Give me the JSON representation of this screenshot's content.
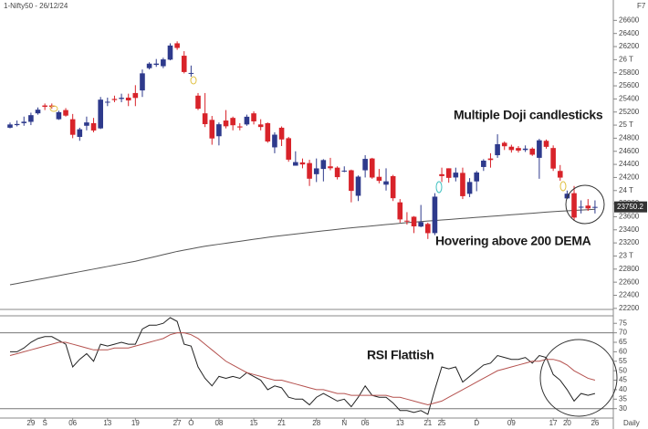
{
  "chart_data": [
    {
      "type": "candlestick",
      "title": "1-Nifty50 - 26/12/24",
      "shortcut": "F7",
      "x_label": "Daily",
      "annotations": [
        "Multiple Doji candlesticks",
        "Hovering above 200 DEMA"
      ],
      "categories": [
        null,
        null,
        null,
        "29",
        null,
        "S",
        null,
        null,
        null,
        "06",
        null,
        null,
        null,
        null,
        "13",
        null,
        null,
        null,
        "19",
        null,
        null,
        null,
        null,
        null,
        "27",
        null,
        "O",
        null,
        null,
        null,
        "08",
        null,
        null,
        null,
        null,
        "15",
        null,
        null,
        null,
        "21",
        null,
        null,
        null,
        null,
        "28",
        null,
        null,
        null,
        "N",
        null,
        null,
        "06",
        null,
        null,
        null,
        null,
        "13",
        null,
        null,
        null,
        "21",
        null,
        "25",
        null,
        null,
        null,
        null,
        "D",
        null,
        null,
        null,
        null,
        "09",
        null,
        null,
        null,
        null,
        null,
        "17",
        null,
        "20",
        null,
        null,
        null,
        "26"
      ],
      "up_color": "#2e3a8c",
      "down_color": "#d8232a",
      "ohlc": [
        [
          24960,
          25040,
          24950,
          25010
        ],
        [
          25000,
          25070,
          24980,
          25017
        ],
        [
          25030,
          25130,
          24990,
          25052
        ],
        [
          25050,
          25190,
          25000,
          25152
        ],
        [
          25180,
          25270,
          25160,
          25236
        ],
        [
          25300,
          25330,
          25230,
          25279
        ],
        [
          25300,
          25330,
          25250,
          25279
        ],
        [
          25090,
          25220,
          25080,
          25198
        ],
        [
          25230,
          25260,
          25130,
          25145
        ],
        [
          25090,
          25170,
          24800,
          24852
        ],
        [
          24820,
          24960,
          24760,
          24936
        ],
        [
          24990,
          25130,
          24920,
          25041
        ],
        [
          25030,
          25110,
          24890,
          24918
        ],
        [
          24950,
          25430,
          24940,
          25389
        ],
        [
          25350,
          25420,
          25290,
          25357
        ],
        [
          25400,
          25450,
          25350,
          25383
        ],
        [
          25400,
          25480,
          25350,
          25418
        ],
        [
          25420,
          25480,
          25290,
          25377
        ],
        [
          25490,
          25610,
          25290,
          25415
        ],
        [
          25530,
          25850,
          25430,
          25791
        ],
        [
          25870,
          25960,
          25850,
          25939
        ],
        [
          25920,
          26010,
          25890,
          25940
        ],
        [
          25900,
          26030,
          25870,
          26004
        ],
        [
          26000,
          26250,
          25990,
          26216
        ],
        [
          26250,
          26280,
          26150,
          26179
        ],
        [
          26060,
          26130,
          25790,
          25811
        ],
        [
          25790,
          25910,
          25740,
          25797
        ],
        [
          25450,
          25490,
          25230,
          25250
        ],
        [
          25180,
          25490,
          24970,
          25015
        ],
        [
          25080,
          25140,
          24700,
          24796
        ],
        [
          24830,
          25040,
          24690,
          25013
        ],
        [
          25070,
          25230,
          24950,
          24982
        ],
        [
          25110,
          25130,
          24920,
          24998
        ],
        [
          24980,
          25030,
          24920,
          24964
        ],
        [
          25010,
          25160,
          24990,
          25128
        ],
        [
          25180,
          25210,
          25010,
          25057
        ],
        [
          25010,
          25090,
          24920,
          24971
        ],
        [
          25030,
          25040,
          24730,
          24750
        ],
        [
          24660,
          24890,
          24570,
          24854
        ],
        [
          24960,
          24980,
          24680,
          24781
        ],
        [
          24800,
          24820,
          24440,
          24472
        ],
        [
          24380,
          24600,
          24380,
          24435
        ],
        [
          24430,
          24490,
          24340,
          24399
        ],
        [
          24420,
          24470,
          24070,
          24181
        ],
        [
          24250,
          24490,
          24130,
          24339
        ],
        [
          24330,
          24480,
          24140,
          24466
        ],
        [
          24370,
          24500,
          24310,
          24341
        ],
        [
          24350,
          24370,
          24170,
          24205
        ],
        [
          24300,
          24370,
          24280,
          24304
        ],
        [
          24310,
          24320,
          23820,
          23995
        ],
        [
          23920,
          24230,
          23840,
          24213
        ],
        [
          24310,
          24540,
          24200,
          24484
        ],
        [
          24490,
          24500,
          24180,
          24199
        ],
        [
          24210,
          24330,
          24110,
          24148
        ],
        [
          24090,
          24340,
          24000,
          24141
        ],
        [
          24220,
          24240,
          23840,
          23883
        ],
        [
          23820,
          23870,
          23510,
          23559
        ],
        [
          23540,
          23670,
          23480,
          23533
        ],
        [
          23600,
          23610,
          23350,
          23453
        ],
        [
          23450,
          23780,
          23440,
          23518
        ],
        [
          23490,
          23510,
          23260,
          23349
        ],
        [
          23350,
          23960,
          23320,
          23907
        ],
        [
          24250,
          24350,
          24130,
          24221
        ],
        [
          24340,
          24340,
          24120,
          24194
        ],
        [
          24200,
          24350,
          24140,
          24274
        ],
        [
          24270,
          24350,
          23870,
          23914
        ],
        [
          23950,
          24190,
          23900,
          24131
        ],
        [
          24140,
          24300,
          23990,
          24276
        ],
        [
          24360,
          24480,
          24300,
          24457
        ],
        [
          24490,
          24570,
          24350,
          24467
        ],
        [
          24540,
          24860,
          24500,
          24708
        ],
        [
          24730,
          24750,
          24620,
          24677
        ],
        [
          24670,
          24700,
          24580,
          24619
        ],
        [
          24650,
          24680,
          24580,
          24610
        ],
        [
          24620,
          24690,
          24590,
          24641
        ],
        [
          24640,
          24660,
          24530,
          24548
        ],
        [
          24500,
          24790,
          24180,
          24768
        ],
        [
          24760,
          24780,
          24640,
          24668
        ],
        [
          24650,
          24690,
          24300,
          24336
        ],
        [
          24300,
          24390,
          24150,
          24198
        ],
        [
          23880,
          24000,
          23870,
          23952
        ],
        [
          23960,
          24070,
          23540,
          23587
        ],
        [
          23740,
          23850,
          23650,
          23753
        ],
        [
          23770,
          23870,
          23690,
          23727
        ],
        [
          23750,
          23850,
          23650,
          23750.2
        ]
      ],
      "dema_color": "#555555",
      "dema": [
        22560,
        22580,
        22600,
        22620,
        22640,
        22660,
        22680,
        22700,
        22720,
        22740,
        22760,
        22780,
        22800,
        22820,
        22840,
        22860,
        22880,
        22900,
        22920,
        22945,
        22970,
        22995,
        23020,
        23045,
        23070,
        23090,
        23110,
        23130,
        23150,
        23165,
        23180,
        23195,
        23210,
        23225,
        23240,
        23255,
        23270,
        23285,
        23300,
        23312,
        23324,
        23336,
        23348,
        23360,
        23372,
        23384,
        23396,
        23408,
        23420,
        23430,
        23440,
        23450,
        23460,
        23470,
        23480,
        23490,
        23500,
        23510,
        23518,
        23526,
        23534,
        23542,
        23550,
        23558,
        23566,
        23574,
        23582,
        23590,
        23598,
        23606,
        23614,
        23622,
        23630,
        23638,
        23646,
        23654,
        23662,
        23670,
        23677,
        23684,
        23690,
        23696,
        23702,
        23708,
        23714
      ],
      "ylim": [
        22100,
        26800
      ],
      "yticks": [
        22200,
        22400,
        22600,
        22800,
        {
          "value": 23000,
          "label": "23 T"
        },
        23200,
        23400,
        23600,
        23800,
        {
          "value": 24000,
          "label": "24 T"
        },
        24200,
        24400,
        24600,
        24800,
        {
          "value": 25000,
          "label": "25 T"
        },
        25200,
        25400,
        25600,
        25800,
        {
          "value": 26000,
          "label": "26 T"
        },
        26200,
        26400,
        26600
      ]
    },
    {
      "type": "line",
      "annotations": [
        "RSI Flattish"
      ],
      "series": [
        {
          "color": "#222222",
          "values": [
            60,
            60,
            62,
            65,
            67,
            68,
            68,
            66,
            64,
            52,
            56,
            59,
            55,
            64,
            63,
            64,
            65,
            64,
            64,
            72,
            74,
            74,
            75,
            78,
            76,
            64,
            63,
            52,
            46,
            42,
            47,
            46,
            47,
            46,
            49,
            47,
            45,
            40,
            42,
            41,
            36,
            35,
            35,
            32,
            36,
            38,
            36,
            34,
            35,
            31,
            36,
            42,
            37,
            36,
            36,
            33,
            29,
            29,
            28,
            29,
            27,
            40,
            52,
            51,
            52,
            44,
            47,
            50,
            53,
            54,
            58,
            57,
            56,
            56,
            57,
            54,
            58,
            57,
            48,
            45,
            40,
            34,
            38,
            37,
            38
          ]
        },
        {
          "color": "#b5524f",
          "values": [
            58,
            59,
            60,
            61,
            62,
            63,
            64,
            65,
            65,
            64,
            63,
            62,
            61,
            61,
            61,
            62,
            62,
            62,
            63,
            64,
            65,
            66,
            67,
            69,
            70,
            70,
            69,
            67,
            64,
            61,
            58,
            55,
            53,
            51,
            49,
            48,
            47,
            46,
            45,
            45,
            44,
            43,
            42,
            41,
            40,
            40,
            39,
            38,
            38,
            37,
            37,
            37,
            37,
            37,
            37,
            36,
            36,
            35,
            34,
            33,
            32,
            33,
            34,
            36,
            38,
            40,
            42,
            44,
            46,
            48,
            50,
            51,
            52,
            53,
            54,
            55,
            55,
            56,
            56,
            55,
            53,
            50,
            48,
            46,
            45
          ]
        }
      ],
      "levels": [
        70,
        30
      ],
      "ylim": [
        26,
        78
      ],
      "yticks": [
        30,
        35,
        40,
        45,
        50,
        55,
        60,
        65,
        70,
        75
      ]
    }
  ]
}
